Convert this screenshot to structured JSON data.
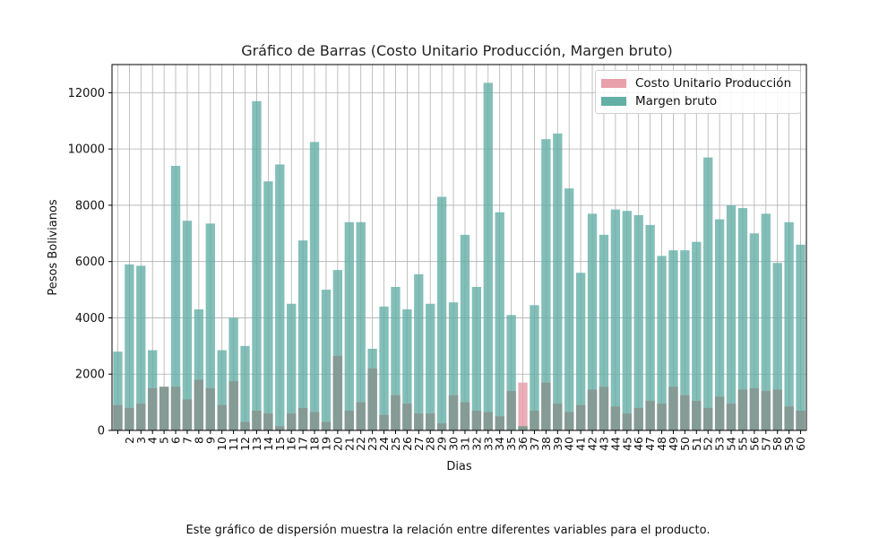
{
  "title": "Gráfico de Barras (Costo Unitario Producción, Margen bruto)",
  "caption": "Este gráfico de dispersión muestra la relación entre diferentes variables para el producto.",
  "colors": {
    "costo": "#e8a0aa",
    "margen": "#64afa6",
    "overlap": "#7c9a92",
    "grid": "#b0b0b0"
  },
  "chart_data": {
    "type": "bar",
    "xlabel": "Dias",
    "ylabel": "Pesos Bolivianos",
    "ylim": [
      0,
      13000
    ],
    "yticks": [
      0,
      2000,
      4000,
      6000,
      8000,
      10000,
      12000
    ],
    "grid": true,
    "legend_position": "top-right",
    "categories": [
      "",
      "2",
      "3",
      "4",
      "5",
      "6",
      "7",
      "8",
      "9",
      "10",
      "11",
      "12",
      "13",
      "14",
      "15",
      "16",
      "17",
      "18",
      "19",
      "20",
      "21",
      "22",
      "23",
      "24",
      "25",
      "26",
      "27",
      "28",
      "29",
      "30",
      "31",
      "32",
      "33",
      "34",
      "35",
      "36",
      "37",
      "38",
      "39",
      "40",
      "41",
      "42",
      "43",
      "44",
      "45",
      "46",
      "47",
      "48",
      "49",
      "50",
      "51",
      "52",
      "53",
      "54",
      "55",
      "56",
      "57",
      "58",
      "59",
      "60"
    ],
    "series": [
      {
        "name": "Costo Unitario Producción",
        "color": "#e8a0aa",
        "values": [
          900,
          800,
          950,
          1500,
          1550,
          1550,
          1100,
          1800,
          1500,
          900,
          1750,
          300,
          700,
          600,
          150,
          600,
          800,
          650,
          300,
          2650,
          700,
          1000,
          2200,
          550,
          1250,
          950,
          600,
          600,
          250,
          1250,
          1000,
          700,
          650,
          500,
          1400,
          1700,
          700,
          1700,
          950,
          650,
          900,
          1450,
          1550,
          850,
          600,
          800,
          1050,
          950,
          1550,
          1250,
          1050,
          800,
          1200,
          950,
          1450,
          1500,
          1400,
          1450,
          850,
          700
        ]
      },
      {
        "name": "Margen bruto",
        "color": "#64afa6",
        "values": [
          2800,
          5900,
          5850,
          2850,
          1550,
          9400,
          7450,
          4300,
          7350,
          2850,
          4000,
          3000,
          11700,
          8850,
          9450,
          4500,
          6750,
          10250,
          5000,
          5700,
          7400,
          7400,
          2900,
          4400,
          5100,
          4300,
          5550,
          4500,
          8300,
          4550,
          6950,
          5100,
          12350,
          7750,
          4100,
          150,
          4450,
          10350,
          10550,
          8600,
          5600,
          7700,
          6950,
          7850,
          7800,
          7650,
          7300,
          6200,
          6400,
          6400,
          6700,
          9700,
          7500,
          8000,
          7900,
          7000,
          7700,
          5950,
          7400,
          6600
        ]
      }
    ]
  }
}
